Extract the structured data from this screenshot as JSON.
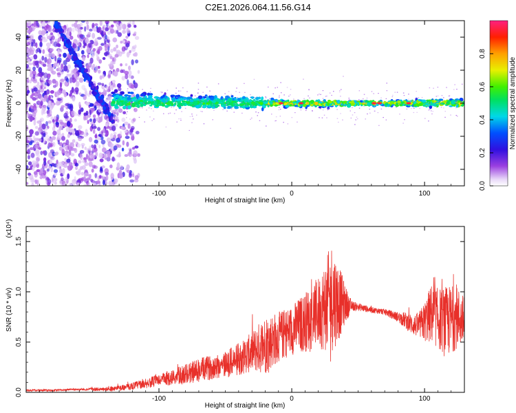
{
  "title": "C2E1.2026.064.11.56.G14",
  "chart_data": [
    {
      "type": "heatmap",
      "title": "C2E1.2026.064.11.56.G14",
      "xlabel": "Height of straight line (km)",
      "ylabel": "Frequency (Hz)",
      "xlim": [
        -200,
        130
      ],
      "ylim": [
        -50,
        50
      ],
      "x_ticks": [
        -100,
        0,
        100
      ],
      "y_ticks": [
        -40,
        -20,
        0,
        20,
        40
      ],
      "colorbar": {
        "label": "Normalized spectral amplitude",
        "range": [
          0,
          1
        ],
        "ticks": [
          "0.0",
          "0.2",
          "0.4",
          "0.6",
          "0.8"
        ]
      },
      "description_values": {
        "diffuse_noise_region_km": [
          -200,
          -125
        ],
        "signal_band_center_hz": 0,
        "signal_band_halfwidth_hz": 6,
        "peak_amplitude_heights_km": [
          -8,
          7,
          62,
          66,
          88
        ]
      }
    },
    {
      "type": "line",
      "xlabel": "Height of straight line (km)",
      "ylabel": "SNR (10 * v/v)",
      "y_multiplier": "(x10⁴)",
      "xlim": [
        -200,
        130
      ],
      "ylim": [
        0,
        1.65
      ],
      "x_ticks": [
        -100,
        0,
        100
      ],
      "y_ticks": [
        "0.0",
        "0.5",
        "1.0",
        "1.5"
      ],
      "color": "#e8302a",
      "series": [
        {
          "name": "SNR",
          "x": [
            -200,
            -180,
            -160,
            -140,
            -125,
            -110,
            -100,
            -90,
            -80,
            -70,
            -60,
            -50,
            -40,
            -30,
            -20,
            -10,
            0,
            10,
            20,
            25,
            30,
            35,
            40,
            45,
            50,
            60,
            70,
            80,
            85,
            90,
            95,
            100,
            105,
            110,
            115,
            120,
            125,
            130
          ],
          "values": [
            0.02,
            0.02,
            0.03,
            0.03,
            0.05,
            0.09,
            0.12,
            0.15,
            0.18,
            0.22,
            0.25,
            0.28,
            0.33,
            0.4,
            0.48,
            0.55,
            0.62,
            0.7,
            0.8,
            0.85,
            0.95,
            0.9,
            0.88,
            0.86,
            0.85,
            0.82,
            0.8,
            0.75,
            0.72,
            0.68,
            0.66,
            0.7,
            0.78,
            0.74,
            0.7,
            0.72,
            0.75,
            0.7
          ],
          "noise_amplitude": [
            0.01,
            0.01,
            0.01,
            0.02,
            0.03,
            0.05,
            0.06,
            0.08,
            0.1,
            0.12,
            0.12,
            0.14,
            0.16,
            0.2,
            0.3,
            0.25,
            0.25,
            0.3,
            0.35,
            0.45,
            0.55,
            0.4,
            0.2,
            0.05,
            0.04,
            0.03,
            0.03,
            0.05,
            0.08,
            0.1,
            0.12,
            0.2,
            0.3,
            0.3,
            0.35,
            0.35,
            0.3,
            0.25
          ]
        }
      ]
    }
  ]
}
